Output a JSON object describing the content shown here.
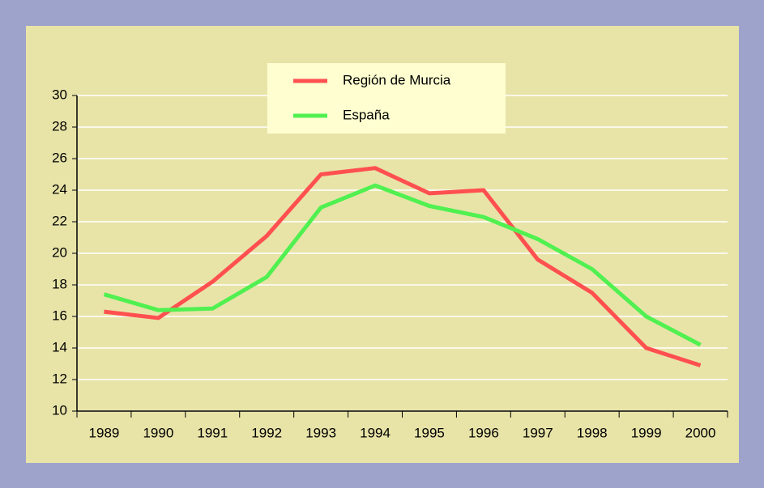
{
  "chart_data": {
    "type": "line",
    "categories": [
      "1989",
      "1990",
      "1991",
      "1992",
      "1993",
      "1994",
      "1995",
      "1996",
      "1997",
      "1998",
      "1999",
      "2000"
    ],
    "series": [
      {
        "name": "Región de Murcia",
        "color": "#ff5050",
        "values": [
          16.3,
          15.9,
          18.2,
          21.1,
          25.0,
          25.4,
          23.8,
          24.0,
          19.6,
          17.5,
          14.0,
          12.9
        ]
      },
      {
        "name": "España",
        "color": "#50f050",
        "values": [
          17.4,
          16.4,
          16.5,
          18.5,
          22.9,
          24.3,
          23.0,
          22.3,
          20.9,
          19.0,
          16.0,
          14.2
        ]
      }
    ],
    "ylim": [
      10,
      30
    ],
    "yticks": [
      10,
      12,
      14,
      16,
      18,
      20,
      22,
      24,
      26,
      28,
      30
    ],
    "grid": true
  }
}
